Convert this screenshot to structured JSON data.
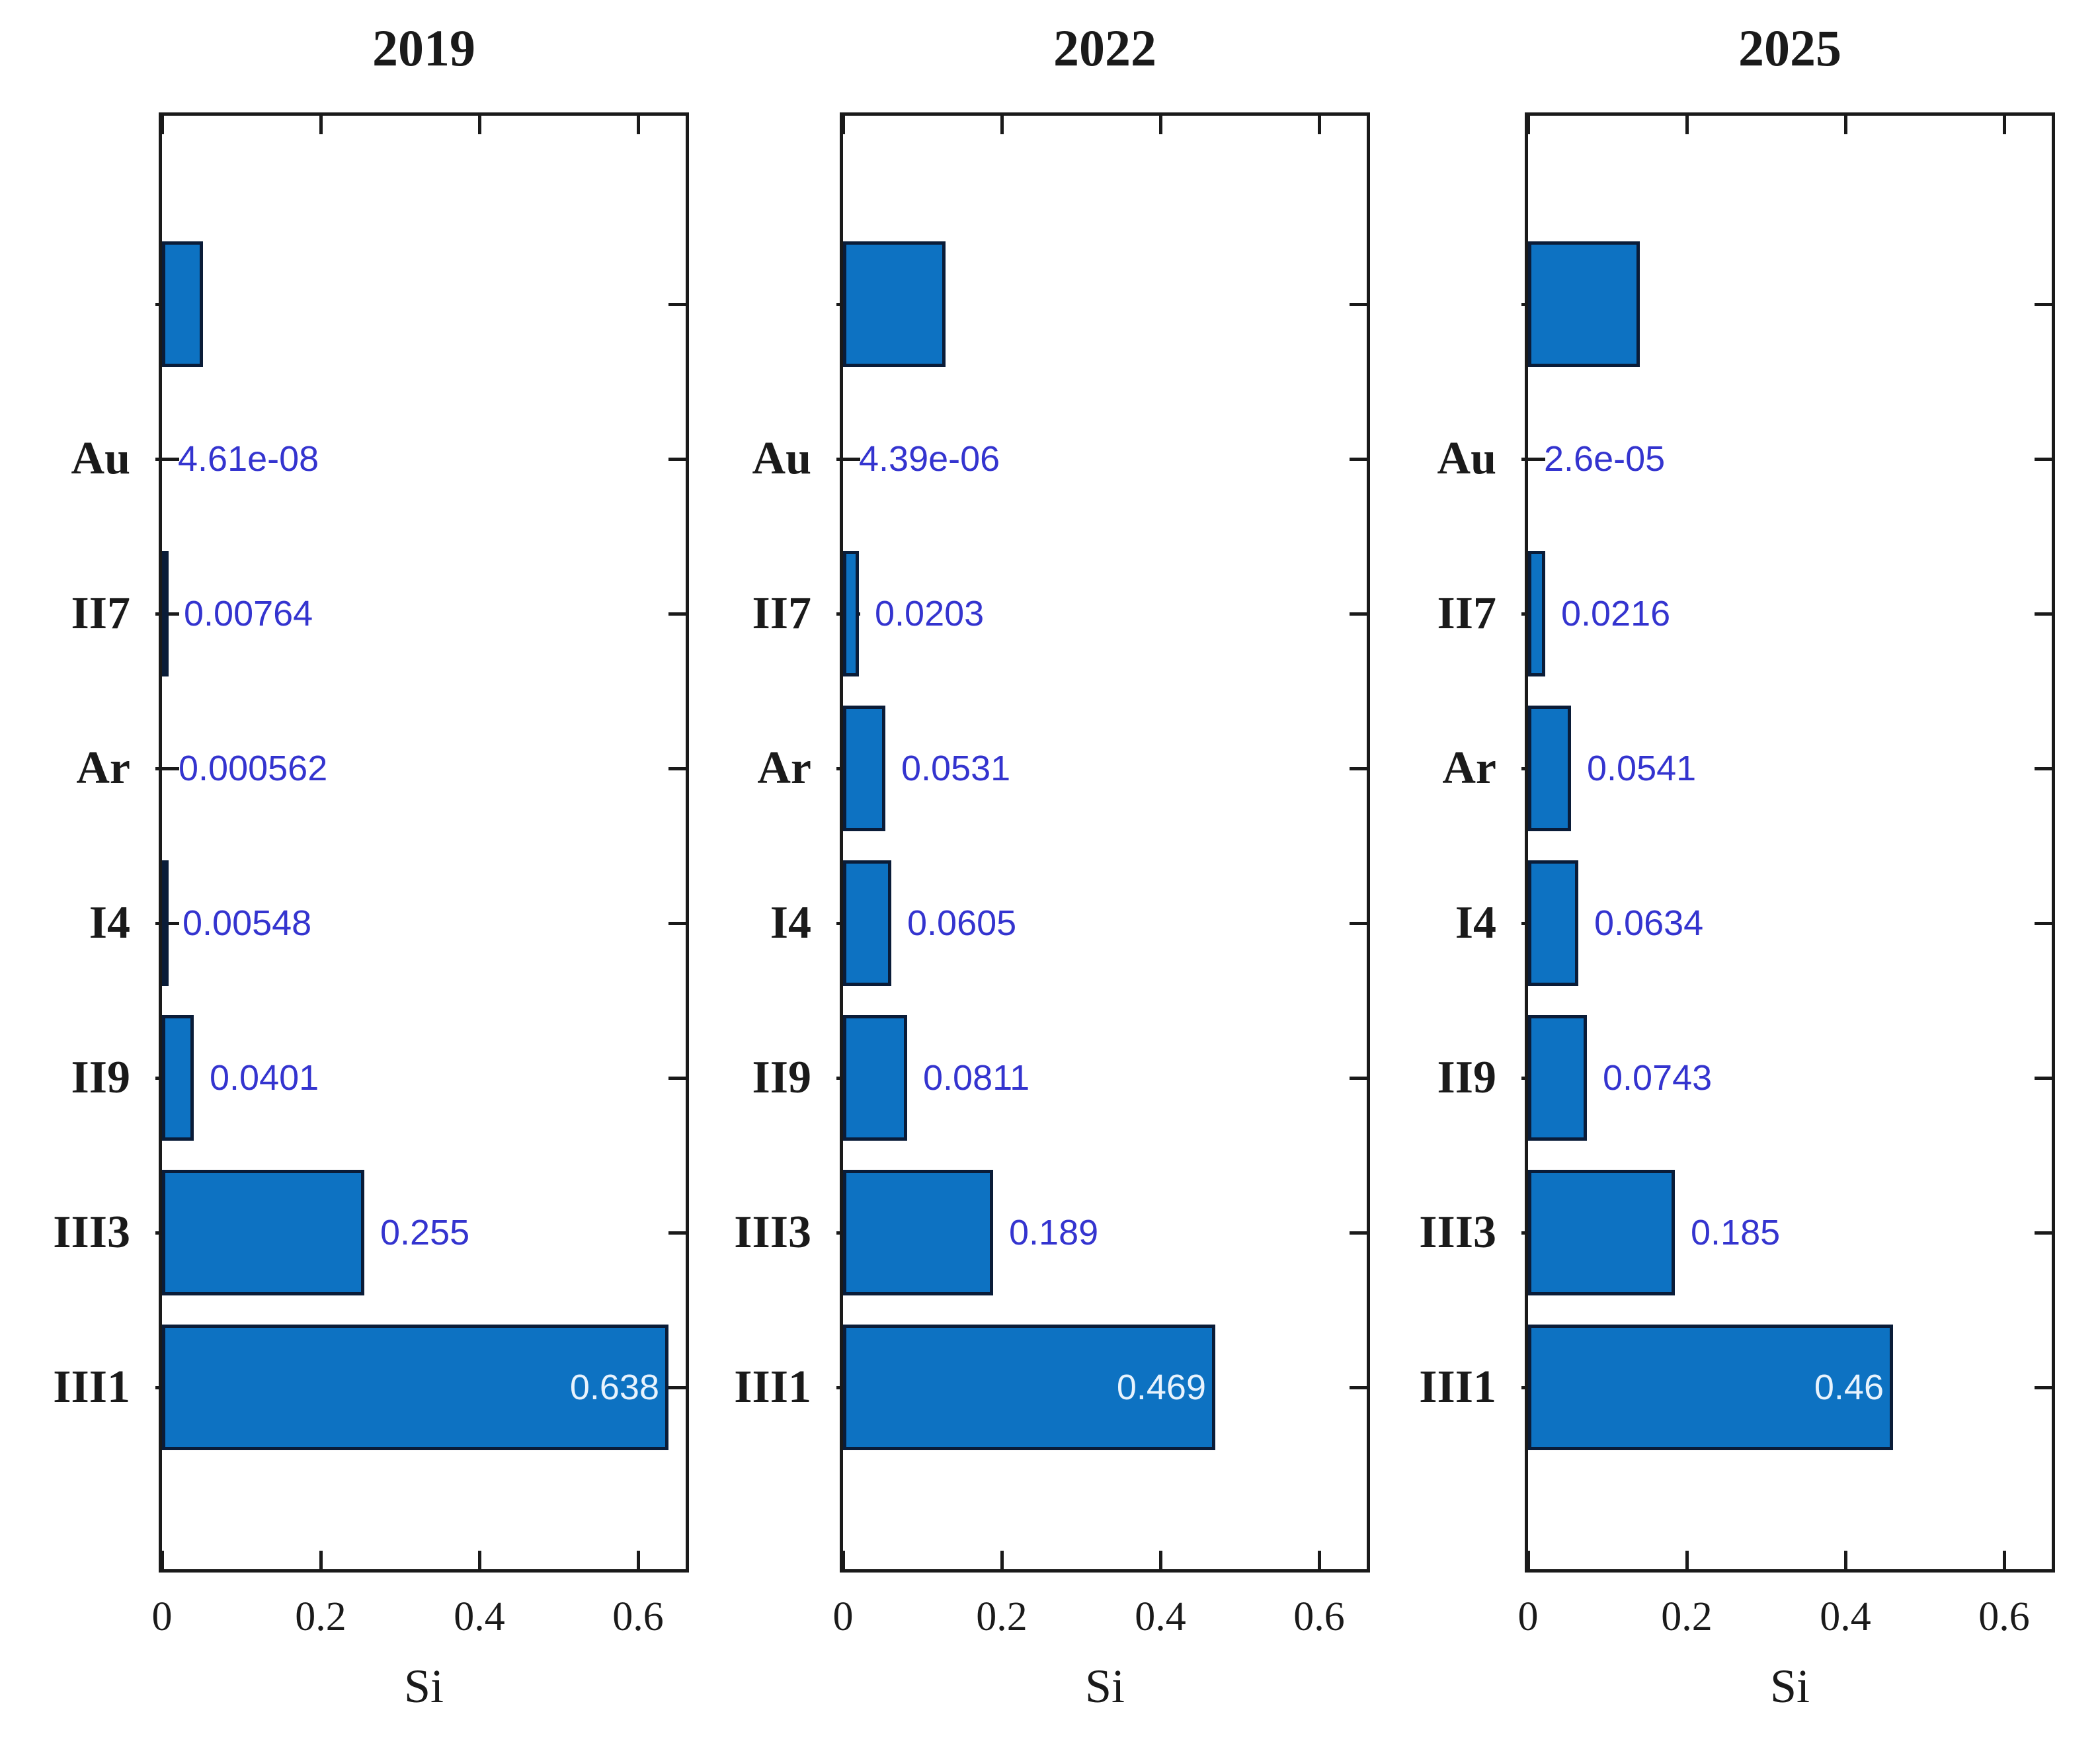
{
  "figure": {
    "kind": "matlab-style horizontal bar subplots",
    "panel_titles": [
      "2019",
      "2022",
      "2025"
    ],
    "shared_xlabel": "Si",
    "grid": false,
    "legend": null
  },
  "colors": {
    "background": "#ffffff",
    "axis": "#1a1a1a",
    "bar_fill": "#0d72c2",
    "bar_edge": "#0a1c38",
    "value_label": "#3434cf",
    "value_label_inside": "#e8f3fd",
    "text": "#1a1a1a"
  },
  "chart_data": [
    {
      "type": "bar",
      "orientation": "horizontal",
      "title": "2019",
      "xlabel": "Si",
      "xlim": [
        0,
        0.66
      ],
      "x_ticks": [
        0,
        0.2,
        0.4,
        0.6
      ],
      "x_tick_labels": [
        "0",
        "0.2",
        "0.4",
        "0.6"
      ],
      "categories": [
        "",
        "Au",
        "II7",
        "Ar",
        "I4",
        "II9",
        "III3",
        "III1"
      ],
      "values": [
        0.052,
        4.61e-08,
        0.00764,
        0.000562,
        0.00548,
        0.0401,
        0.255,
        0.638
      ],
      "value_labels": [
        "",
        "4.61e-08",
        "0.00764",
        "0.000562",
        "0.00548",
        "0.0401",
        "0.255",
        "0.638"
      ],
      "label_placement": [
        "none",
        "outside",
        "outside",
        "outside",
        "outside",
        "outside",
        "outside",
        "inside"
      ]
    },
    {
      "type": "bar",
      "orientation": "horizontal",
      "title": "2022",
      "xlabel": "Si",
      "xlim": [
        0,
        0.66
      ],
      "x_ticks": [
        0,
        0.2,
        0.4,
        0.6
      ],
      "x_tick_labels": [
        "0",
        "0.2",
        "0.4",
        "0.6"
      ],
      "categories": [
        "",
        "Au",
        "II7",
        "Ar",
        "I4",
        "II9",
        "III3",
        "III1"
      ],
      "values": [
        0.129,
        4.39e-06,
        0.0203,
        0.0531,
        0.0605,
        0.0811,
        0.189,
        0.469
      ],
      "value_labels": [
        "",
        "4.39e-06",
        "0.0203",
        "0.0531",
        "0.0605",
        "0.0811",
        "0.189",
        "0.469"
      ],
      "label_placement": [
        "none",
        "outside",
        "outside",
        "outside",
        "outside",
        "outside",
        "outside",
        "inside"
      ]
    },
    {
      "type": "bar",
      "orientation": "horizontal",
      "title": "2025",
      "xlabel": "Si",
      "xlim": [
        0,
        0.66
      ],
      "x_ticks": [
        0,
        0.2,
        0.4,
        0.6
      ],
      "x_tick_labels": [
        "0",
        "0.2",
        "0.4",
        "0.6"
      ],
      "categories": [
        "",
        "Au",
        "II7",
        "Ar",
        "I4",
        "II9",
        "III3",
        "III1"
      ],
      "values": [
        0.141,
        2.6e-05,
        0.0216,
        0.0541,
        0.0634,
        0.0743,
        0.185,
        0.46
      ],
      "value_labels": [
        "",
        "2.6e-05",
        "0.0216",
        "0.0541",
        "0.0634",
        "0.0743",
        "0.185",
        "0.46"
      ],
      "label_placement": [
        "none",
        "outside",
        "outside",
        "outside",
        "outside",
        "outside",
        "outside",
        "inside"
      ]
    }
  ]
}
